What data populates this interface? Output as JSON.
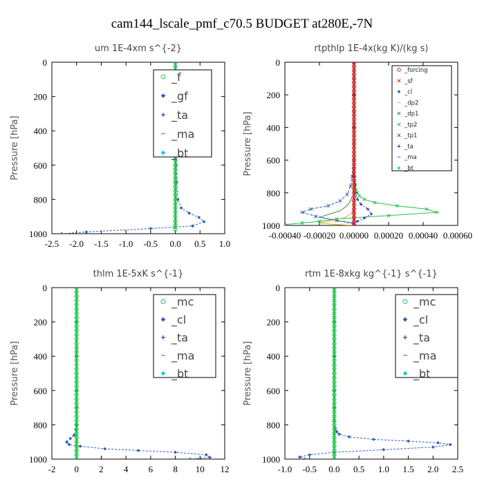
{
  "suptitle": "cam144_lscale_pmf_c70.5  BUDGET at280E,-7N",
  "chart_data": [
    {
      "type": "line",
      "title": "um   1E-4xm s^{-2}",
      "ylabel": "Pressure [hPa]",
      "xlim": [
        -2.5,
        1.0
      ],
      "ylim": [
        1000,
        0
      ],
      "xticks": [
        "-2.5",
        "-2.0",
        "-1.5",
        "-1.0",
        "-0.5",
        "0.0",
        "0.5",
        "1.0"
      ],
      "yticks": [
        "0",
        "200",
        "400",
        "600",
        "800",
        "1000"
      ],
      "legend_style": "large",
      "legend": [
        "_f",
        "_gf",
        "_ta",
        "_ma",
        "_bt"
      ],
      "series": [
        {
          "name": "_gf",
          "color": "#2e5fb8",
          "dash": "3,2",
          "marker": "diamond",
          "x": [
            0,
            0,
            0,
            0,
            0,
            0.01,
            0.02,
            0.03,
            0.05,
            0.12,
            0.28,
            0.48,
            0.58,
            0.35,
            -0.5,
            -1.8,
            -2.3
          ],
          "y": [
            0,
            100,
            200,
            300,
            400,
            500,
            600,
            700,
            800,
            850,
            880,
            905,
            930,
            955,
            970,
            990,
            1000
          ]
        },
        {
          "name": "_f",
          "color": "#22c24a",
          "dash": "",
          "marker": "circle",
          "x": [
            0,
            0,
            0,
            0,
            0,
            0,
            0,
            0,
            0,
            0,
            0,
            0,
            0,
            0,
            0,
            0,
            0,
            0,
            0,
            0,
            0,
            0,
            0,
            0,
            0,
            0,
            0,
            0,
            0,
            0,
            0,
            0,
            0,
            0,
            0,
            0,
            0,
            0,
            0,
            0
          ],
          "y": [
            0,
            25,
            50,
            75,
            100,
            125,
            150,
            175,
            200,
            225,
            250,
            275,
            300,
            325,
            350,
            375,
            400,
            425,
            450,
            475,
            500,
            525,
            550,
            575,
            600,
            625,
            650,
            675,
            700,
            725,
            750,
            775,
            800,
            825,
            850,
            875,
            900,
            925,
            950,
            975
          ]
        }
      ]
    },
    {
      "type": "line",
      "title": "rtpthlp   1E-4x(kg K)/(kg s)",
      "ylabel": "Pressure [hPa]",
      "xlim": [
        -0.0004,
        0.0006
      ],
      "ylim": [
        1000,
        0
      ],
      "xticks": [
        "-0.00040",
        "-0.00020",
        "0.00000",
        "0.00020",
        "0.00040",
        "0.00060"
      ],
      "yticks": [
        "0",
        "200",
        "400",
        "600",
        "800",
        "1000"
      ],
      "legend_style": "small",
      "legend": [
        "_forcing",
        "_sf",
        "_cl",
        "_dp2",
        "_dp1",
        "_tp2",
        "_tp1",
        "_ta",
        "_ma",
        "_bt"
      ],
      "series": [
        {
          "name": "_tp2",
          "color": "#22c24a",
          "dash": "",
          "marker": "x",
          "x": [
            0,
            0,
            0,
            0,
            0,
            0,
            0,
            0,
            0,
            1e-05,
            1e-05,
            2e-05,
            3e-05,
            6e-05,
            0.00012,
            0.00025,
            0.00042,
            0.00048,
            0.0002,
            -0.0001,
            -0.0002,
            -0.0003,
            -0.0004
          ],
          "y": [
            0,
            100,
            200,
            300,
            400,
            500,
            600,
            650,
            700,
            750,
            780,
            800,
            820,
            840,
            860,
            880,
            900,
            920,
            940,
            960,
            975,
            985,
            995
          ]
        },
        {
          "name": "_dp1",
          "color": "#3a8f3a",
          "dash": "",
          "marker": "none",
          "x": [
            -1e-05,
            -2e-05,
            -4e-05,
            -8e-05,
            -0.00014,
            -0.0002,
            -0.0001,
            0
          ],
          "y": [
            820,
            850,
            880,
            910,
            930,
            950,
            970,
            985
          ]
        },
        {
          "name": "_tp1",
          "color": "#2e5fb8",
          "dash": "4,2",
          "marker": "x",
          "x": [
            0,
            0,
            0,
            0,
            -1e-05,
            -2e-05,
            -4e-05,
            -8e-05,
            -0.00015,
            -0.00025,
            -0.0003,
            -0.00022,
            -0.0001,
            0
          ],
          "y": [
            0,
            200,
            400,
            600,
            700,
            760,
            810,
            850,
            880,
            900,
            920,
            945,
            970,
            990
          ]
        },
        {
          "name": "_ta",
          "color": "#1a1aa8",
          "dash": "2,2",
          "marker": "plus",
          "x": [
            0,
            0,
            0,
            0,
            1e-05,
            2e-05,
            4e-05,
            8e-05,
            0.0001,
            6e-05,
            2e-05,
            0
          ],
          "y": [
            0,
            200,
            400,
            700,
            800,
            840,
            870,
            900,
            930,
            955,
            975,
            990
          ]
        },
        {
          "name": "_cl",
          "color": "#e0b030",
          "dash": "",
          "marker": "none",
          "x": [
            0,
            -2e-05,
            -5e-05,
            -0.0001,
            -0.00015,
            -0.0002,
            -0.0001,
            0
          ],
          "y": [
            900,
            930,
            950,
            965,
            975,
            985,
            995,
            1000
          ]
        },
        {
          "name": "_forcing",
          "color": "#cc2222",
          "dash": "",
          "marker": "circle",
          "x": [
            0,
            0,
            0,
            0,
            0,
            0,
            0,
            0,
            0,
            0,
            0,
            0,
            0,
            0,
            0,
            0,
            0,
            0,
            0,
            0,
            0,
            0,
            0,
            0,
            0,
            0,
            0,
            0,
            0,
            0,
            0,
            0,
            0,
            0,
            0,
            0,
            0,
            0,
            0,
            0,
            0
          ],
          "y": [
            0,
            25,
            50,
            75,
            100,
            125,
            150,
            175,
            200,
            225,
            250,
            275,
            300,
            325,
            350,
            375,
            400,
            425,
            450,
            475,
            500,
            525,
            550,
            575,
            600,
            625,
            650,
            675,
            700,
            725,
            750,
            775,
            800,
            825,
            850,
            875,
            900,
            925,
            950,
            975,
            1000
          ]
        }
      ]
    },
    {
      "type": "line",
      "title": "thlm   1E-5xK s^{-1}",
      "ylabel": "Pressure [hPa]",
      "xlim": [
        -2,
        12
      ],
      "ylim": [
        1000,
        0
      ],
      "xticks": [
        "-2",
        "0",
        "2",
        "4",
        "6",
        "8",
        "10",
        "12"
      ],
      "yticks": [
        "0",
        "200",
        "400",
        "600",
        "800",
        "1000"
      ],
      "legend_style": "large",
      "legend": [
        "_mc",
        "_cl",
        "_ta",
        "_ma",
        "_bt"
      ],
      "series": [
        {
          "name": "_cl",
          "color": "#2e5fb8",
          "dash": "3,2",
          "marker": "diamond",
          "x": [
            0,
            0,
            0,
            0,
            0,
            0,
            -0.05,
            -0.2,
            -0.5,
            -0.8,
            -0.6,
            0.3,
            2.3,
            5.0,
            8.0,
            10.5,
            10.8,
            9.2
          ],
          "y": [
            0,
            200,
            400,
            600,
            700,
            800,
            830,
            860,
            880,
            900,
            915,
            925,
            940,
            950,
            960,
            975,
            990,
            1000
          ]
        },
        {
          "name": "_mc",
          "color": "#22c24a",
          "dash": "",
          "marker": "circle",
          "x": [
            0,
            0,
            0,
            0,
            0,
            0,
            0,
            0,
            0,
            0,
            0,
            0,
            0,
            0,
            0,
            0,
            0,
            0,
            0,
            0,
            0,
            0,
            0,
            0,
            0,
            0,
            0,
            0,
            0,
            0,
            0,
            0,
            0,
            0,
            0,
            0,
            0,
            0,
            0,
            0,
            0
          ],
          "y": [
            0,
            25,
            50,
            75,
            100,
            125,
            150,
            175,
            200,
            225,
            250,
            275,
            300,
            325,
            350,
            375,
            400,
            425,
            450,
            475,
            500,
            525,
            550,
            575,
            600,
            625,
            650,
            675,
            700,
            725,
            750,
            775,
            800,
            825,
            850,
            875,
            900,
            925,
            950,
            975,
            1000
          ]
        }
      ]
    },
    {
      "type": "line",
      "title": "rtm   1E-8xkg kg^{-1} s^{-1}",
      "ylabel": "Pressure [hPa]",
      "xlim": [
        -1.0,
        2.5
      ],
      "ylim": [
        1000,
        0
      ],
      "xticks": [
        "-1.0",
        "-0.5",
        "0.0",
        "0.5",
        "1.0",
        "1.5",
        "2.0",
        "2.5"
      ],
      "yticks": [
        "0",
        "200",
        "400",
        "600",
        "800",
        "1000"
      ],
      "legend_style": "large",
      "legend": [
        "_mc",
        "_cl",
        "_ta",
        "_ma",
        "_bt"
      ],
      "series": [
        {
          "name": "_cl",
          "color": "#2e5fb8",
          "dash": "3,2",
          "marker": "diamond",
          "x": [
            0,
            0,
            0,
            0,
            0,
            0,
            0.02,
            0.05,
            0.1,
            0.3,
            0.8,
            1.5,
            2.1,
            2.35,
            2.0,
            1.0,
            0,
            -0.5,
            -0.7,
            -0.6
          ],
          "y": [
            0,
            200,
            400,
            600,
            700,
            780,
            820,
            840,
            855,
            870,
            885,
            895,
            905,
            915,
            930,
            945,
            960,
            975,
            988,
            1000
          ]
        },
        {
          "name": "_mc",
          "color": "#22c24a",
          "dash": "",
          "marker": "circle",
          "x": [
            0,
            0,
            0,
            0,
            0,
            0,
            0,
            0,
            0,
            0,
            0,
            0,
            0,
            0,
            0,
            0,
            0,
            0,
            0,
            0,
            0,
            0,
            0,
            0,
            0,
            0,
            0,
            0,
            0,
            0,
            0,
            0,
            0,
            0,
            0,
            0,
            0,
            0,
            0,
            0,
            0
          ],
          "y": [
            0,
            25,
            50,
            75,
            100,
            125,
            150,
            175,
            200,
            225,
            250,
            275,
            300,
            325,
            350,
            375,
            400,
            425,
            450,
            475,
            500,
            525,
            550,
            575,
            600,
            625,
            650,
            675,
            700,
            725,
            750,
            775,
            800,
            825,
            850,
            875,
            900,
            925,
            950,
            975,
            1000
          ]
        }
      ]
    }
  ],
  "legend_styles": {
    "_f": {
      "color": "#22c24a",
      "marker": "circle"
    },
    "_gf": {
      "color": "#2e5fb8",
      "marker": "diamond"
    },
    "_mc": {
      "color": "#22c24a",
      "marker": "circle"
    },
    "_cl": {
      "color": "#2e5fb8",
      "marker": "diamond"
    },
    "_ta": {
      "color": "#1a1aa8",
      "marker": "plus"
    },
    "_ma": {
      "color": "#4a7fd0",
      "marker": "dash"
    },
    "_bt": {
      "color": "#00d0e0",
      "marker": "diamond"
    },
    "_forcing": {
      "color": "#cc2222",
      "marker": "circle"
    },
    "_sf": {
      "color": "#cc2222",
      "marker": "x"
    },
    "_dp2": {
      "color": "#e0c030",
      "marker": "dash"
    },
    "_dp1": {
      "color": "#3a8f3a",
      "marker": "x"
    },
    "_tp2": {
      "color": "#22c24a",
      "marker": "x"
    },
    "_tp1": {
      "color": "#2e5fb8",
      "marker": "x"
    }
  }
}
